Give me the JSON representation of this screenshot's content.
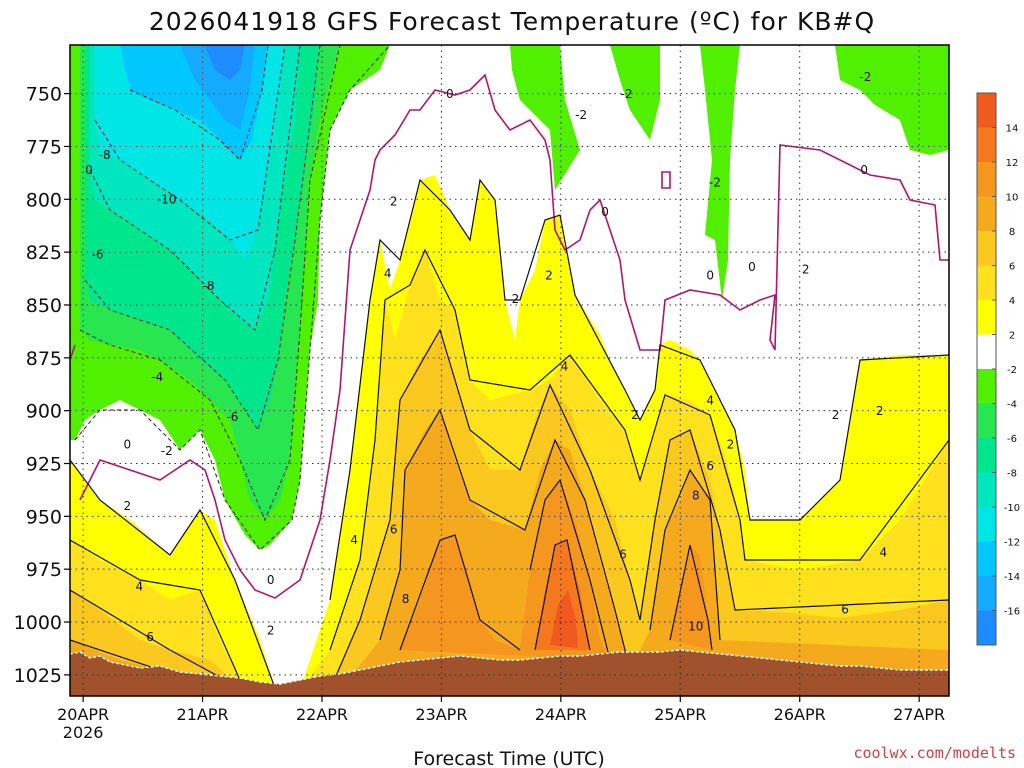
{
  "chart_data": {
    "type": "contour",
    "title": "2026041918 GFS Forecast Temperature (ºC) for KB#Q",
    "xlabel": "Forecast Time (UTC)",
    "credit": "coolwx.com/modelts",
    "x_ticks": [
      {
        "label": "20APR",
        "sub": "2026",
        "day": 0
      },
      {
        "label": "21APR",
        "sub": "",
        "day": 1
      },
      {
        "label": "22APR",
        "sub": "",
        "day": 2
      },
      {
        "label": "23APR",
        "sub": "",
        "day": 3
      },
      {
        "label": "24APR",
        "sub": "",
        "day": 4
      },
      {
        "label": "25APR",
        "sub": "",
        "day": 5
      },
      {
        "label": "26APR",
        "sub": "",
        "day": 6
      },
      {
        "label": "27APR",
        "sub": "",
        "day": 7
      }
    ],
    "xlim_days": [
      -0.11,
      7.25
    ],
    "y_ticks": [
      750,
      775,
      800,
      825,
      850,
      875,
      900,
      925,
      950,
      975,
      1000,
      1025
    ],
    "ylim_hpa": [
      727,
      1035
    ],
    "colorbar": {
      "labels": [
        "14",
        "12",
        "10",
        "8",
        "6",
        "4",
        "2",
        "-2",
        "-4",
        "-6",
        "-8",
        "-10",
        "-12",
        "-14",
        "-16"
      ],
      "bands": [
        {
          "min": 14,
          "max": 16,
          "color": "#f05a1e"
        },
        {
          "min": 12,
          "max": 14,
          "color": "#f5781e"
        },
        {
          "min": 10,
          "max": 12,
          "color": "#f5961e"
        },
        {
          "min": 8,
          "max": 10,
          "color": "#f5aa1e"
        },
        {
          "min": 6,
          "max": 8,
          "color": "#fac81e"
        },
        {
          "min": 4,
          "max": 6,
          "color": "#ffe11e"
        },
        {
          "min": 2,
          "max": 4,
          "color": "#ffff00"
        },
        {
          "min": -2,
          "max": 2,
          "color": "#ffffff"
        },
        {
          "min": -4,
          "max": -2,
          "color": "#50f000"
        },
        {
          "min": -6,
          "max": -4,
          "color": "#28e650"
        },
        {
          "min": -8,
          "max": -6,
          "color": "#00e68c"
        },
        {
          "min": -10,
          "max": -8,
          "color": "#00e6be"
        },
        {
          "min": -12,
          "max": -10,
          "color": "#00e6e6"
        },
        {
          "min": -14,
          "max": -12,
          "color": "#00c8ff"
        },
        {
          "min": -16,
          "max": -14,
          "color": "#14aaff"
        },
        {
          "min": -18,
          "max": -16,
          "color": "#1e8cff"
        }
      ]
    },
    "contour_labels": [
      {
        "text": "0",
        "day": 0.05,
        "hpa": 788
      },
      {
        "text": "-8",
        "day": 0.18,
        "hpa": 781
      },
      {
        "text": "-10",
        "day": 0.7,
        "hpa": 802
      },
      {
        "text": "-6",
        "day": 0.12,
        "hpa": 828
      },
      {
        "text": "-8",
        "day": 1.05,
        "hpa": 843
      },
      {
        "text": "-4",
        "day": 0.62,
        "hpa": 886
      },
      {
        "text": "-6",
        "day": 1.25,
        "hpa": 905
      },
      {
        "text": "0",
        "day": 0.37,
        "hpa": 918
      },
      {
        "text": "-2",
        "day": 0.7,
        "hpa": 921
      },
      {
        "text": "2",
        "day": 0.37,
        "hpa": 947
      },
      {
        "text": "4",
        "day": 0.47,
        "hpa": 985
      },
      {
        "text": "6",
        "day": 0.56,
        "hpa": 1009
      },
      {
        "text": "0",
        "day": 1.57,
        "hpa": 982
      },
      {
        "text": "2",
        "day": 1.57,
        "hpa": 1006
      },
      {
        "text": "0",
        "day": 3.07,
        "hpa": 752
      },
      {
        "text": "2",
        "day": 2.6,
        "hpa": 803
      },
      {
        "text": "4",
        "day": 2.55,
        "hpa": 837
      },
      {
        "text": "4",
        "day": 2.27,
        "hpa": 963
      },
      {
        "text": "6",
        "day": 2.6,
        "hpa": 958
      },
      {
        "text": "8",
        "day": 2.7,
        "hpa": 991
      },
      {
        "text": "-2",
        "day": 4.55,
        "hpa": 752
      },
      {
        "text": "-2",
        "day": 4.17,
        "hpa": 762
      },
      {
        "text": "0",
        "day": 4.37,
        "hpa": 808
      },
      {
        "text": "2",
        "day": 3.9,
        "hpa": 838
      },
      {
        "text": "2",
        "day": 3.62,
        "hpa": 849
      },
      {
        "text": "4",
        "day": 4.03,
        "hpa": 881
      },
      {
        "text": "2",
        "day": 4.62,
        "hpa": 904
      },
      {
        "text": "4",
        "day": 5.25,
        "hpa": 897
      },
      {
        "text": "2",
        "day": 5.42,
        "hpa": 918
      },
      {
        "text": "6",
        "day": 5.25,
        "hpa": 928
      },
      {
        "text": "8",
        "day": 5.13,
        "hpa": 942
      },
      {
        "text": "6",
        "day": 4.52,
        "hpa": 970
      },
      {
        "text": "10",
        "day": 5.13,
        "hpa": 1004
      },
      {
        "text": "-2",
        "day": 5.29,
        "hpa": 794
      },
      {
        "text": "0",
        "day": 5.25,
        "hpa": 838
      },
      {
        "text": "0",
        "day": 5.6,
        "hpa": 834
      },
      {
        "text": "2",
        "day": 6.05,
        "hpa": 835
      },
      {
        "text": "-2",
        "day": 6.55,
        "hpa": 744
      },
      {
        "text": "0",
        "day": 6.54,
        "hpa": 788
      },
      {
        "text": "2",
        "day": 6.3,
        "hpa": 904
      },
      {
        "text": "2",
        "day": 6.67,
        "hpa": 902
      },
      {
        "text": "4",
        "day": 6.7,
        "hpa": 969
      },
      {
        "text": "6",
        "day": 6.38,
        "hpa": 996
      }
    ]
  }
}
